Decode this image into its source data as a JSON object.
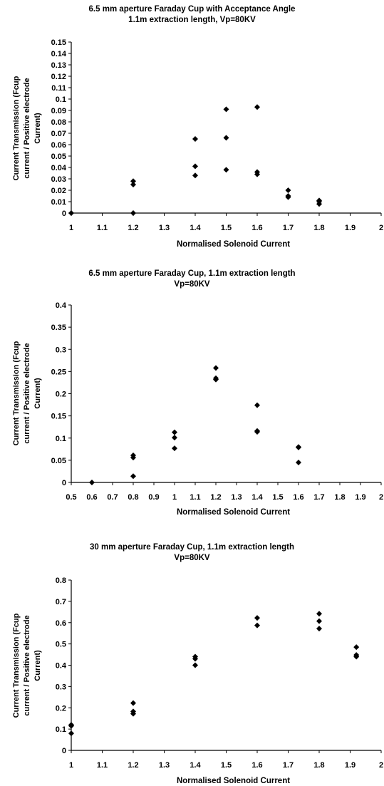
{
  "chart_data": [
    {
      "type": "scatter",
      "title": "6.5 mm aperture Faraday Cup with Acceptance Angle",
      "subtitle": "1.1m extraction length, Vp=80KV",
      "xlabel": "Normalised Solenoid Current",
      "ylabel": [
        "Current Transmission (Fcup",
        "current / Positive electrode",
        "Current)"
      ],
      "xlim": [
        1,
        2
      ],
      "ylim": [
        0,
        0.15
      ],
      "x_ticks": [
        "1",
        "1.1",
        "1.2",
        "1.3",
        "1.4",
        "1.5",
        "1.6",
        "1.7",
        "1.8",
        "1.9",
        "2"
      ],
      "y_ticks": [
        "0",
        "0.01",
        "0.02",
        "0.03",
        "0.04",
        "0.05",
        "0.06",
        "0.07",
        "0.08",
        "0.09",
        "0.1",
        "0.11",
        "0.12",
        "0.13",
        "0.14",
        "0.15"
      ],
      "grid": false,
      "marker": "diamond",
      "points": [
        [
          1.0,
          0.0
        ],
        [
          1.2,
          0.028
        ],
        [
          1.2,
          0.025
        ],
        [
          1.2,
          0.0
        ],
        [
          1.4,
          0.065
        ],
        [
          1.4,
          0.041
        ],
        [
          1.4,
          0.033
        ],
        [
          1.5,
          0.091
        ],
        [
          1.5,
          0.066
        ],
        [
          1.5,
          0.038
        ],
        [
          1.6,
          0.093
        ],
        [
          1.6,
          0.036
        ],
        [
          1.6,
          0.034
        ],
        [
          1.7,
          0.02
        ],
        [
          1.7,
          0.015
        ],
        [
          1.7,
          0.014
        ],
        [
          1.8,
          0.011
        ],
        [
          1.8,
          0.01
        ],
        [
          1.8,
          0.008
        ]
      ]
    },
    {
      "type": "scatter",
      "title": "6.5 mm aperture Faraday Cup, 1.1m extraction length",
      "subtitle": "Vp=80KV",
      "xlabel": "Normalised Solenoid Current",
      "ylabel": [
        "Current Transmission (Fcup",
        "current / Positive electrode",
        "Current)"
      ],
      "xlim": [
        0.5,
        2
      ],
      "ylim": [
        0,
        0.4
      ],
      "x_ticks": [
        "0.5",
        "0.6",
        "0.7",
        "0.8",
        "0.9",
        "1",
        "1.1",
        "1.2",
        "1.3",
        "1.4",
        "1.5",
        "1.6",
        "1.7",
        "1.8",
        "1.9",
        "2"
      ],
      "y_ticks": [
        "0",
        "0.05",
        "0.1",
        "0.15",
        "0.2",
        "0.25",
        "0.3",
        "0.35",
        "0.4"
      ],
      "grid": false,
      "marker": "diamond",
      "points": [
        [
          0.6,
          0.0
        ],
        [
          0.8,
          0.061
        ],
        [
          0.8,
          0.056
        ],
        [
          0.8,
          0.014
        ],
        [
          1.0,
          0.113
        ],
        [
          1.0,
          0.101
        ],
        [
          1.0,
          0.077
        ],
        [
          1.2,
          0.258
        ],
        [
          1.2,
          0.235
        ],
        [
          1.2,
          0.232
        ],
        [
          1.4,
          0.174
        ],
        [
          1.4,
          0.116
        ],
        [
          1.4,
          0.114
        ],
        [
          1.6,
          0.08
        ],
        [
          1.6,
          0.079
        ],
        [
          1.6,
          0.045
        ]
      ]
    },
    {
      "type": "scatter",
      "title": "30 mm aperture Faraday Cup, 1.1m extraction length",
      "subtitle": "Vp=80KV",
      "xlabel": "Normalised Solenoid Current",
      "ylabel": [
        "Current Transmission (Fcup",
        "current / Positive electrode",
        "Current)"
      ],
      "xlim": [
        1,
        2
      ],
      "ylim": [
        0,
        0.8
      ],
      "x_ticks": [
        "1",
        "1.1",
        "1.2",
        "1.3",
        "1.4",
        "1.5",
        "1.6",
        "1.7",
        "1.8",
        "1.9",
        "2"
      ],
      "y_ticks": [
        "0",
        "0.1",
        "0.2",
        "0.3",
        "0.4",
        "0.5",
        "0.6",
        "0.7",
        "0.8"
      ],
      "grid": false,
      "marker": "diamond",
      "points": [
        [
          1.0,
          0.12
        ],
        [
          1.0,
          0.115
        ],
        [
          1.0,
          0.08
        ],
        [
          1.2,
          0.222
        ],
        [
          1.2,
          0.183
        ],
        [
          1.2,
          0.172
        ],
        [
          1.4,
          0.44
        ],
        [
          1.4,
          0.43
        ],
        [
          1.4,
          0.4
        ],
        [
          1.6,
          0.622
        ],
        [
          1.6,
          0.587
        ],
        [
          1.8,
          0.642
        ],
        [
          1.8,
          0.607
        ],
        [
          1.8,
          0.572
        ],
        [
          1.92,
          0.485
        ],
        [
          1.92,
          0.448
        ],
        [
          1.92,
          0.44
        ]
      ]
    }
  ]
}
